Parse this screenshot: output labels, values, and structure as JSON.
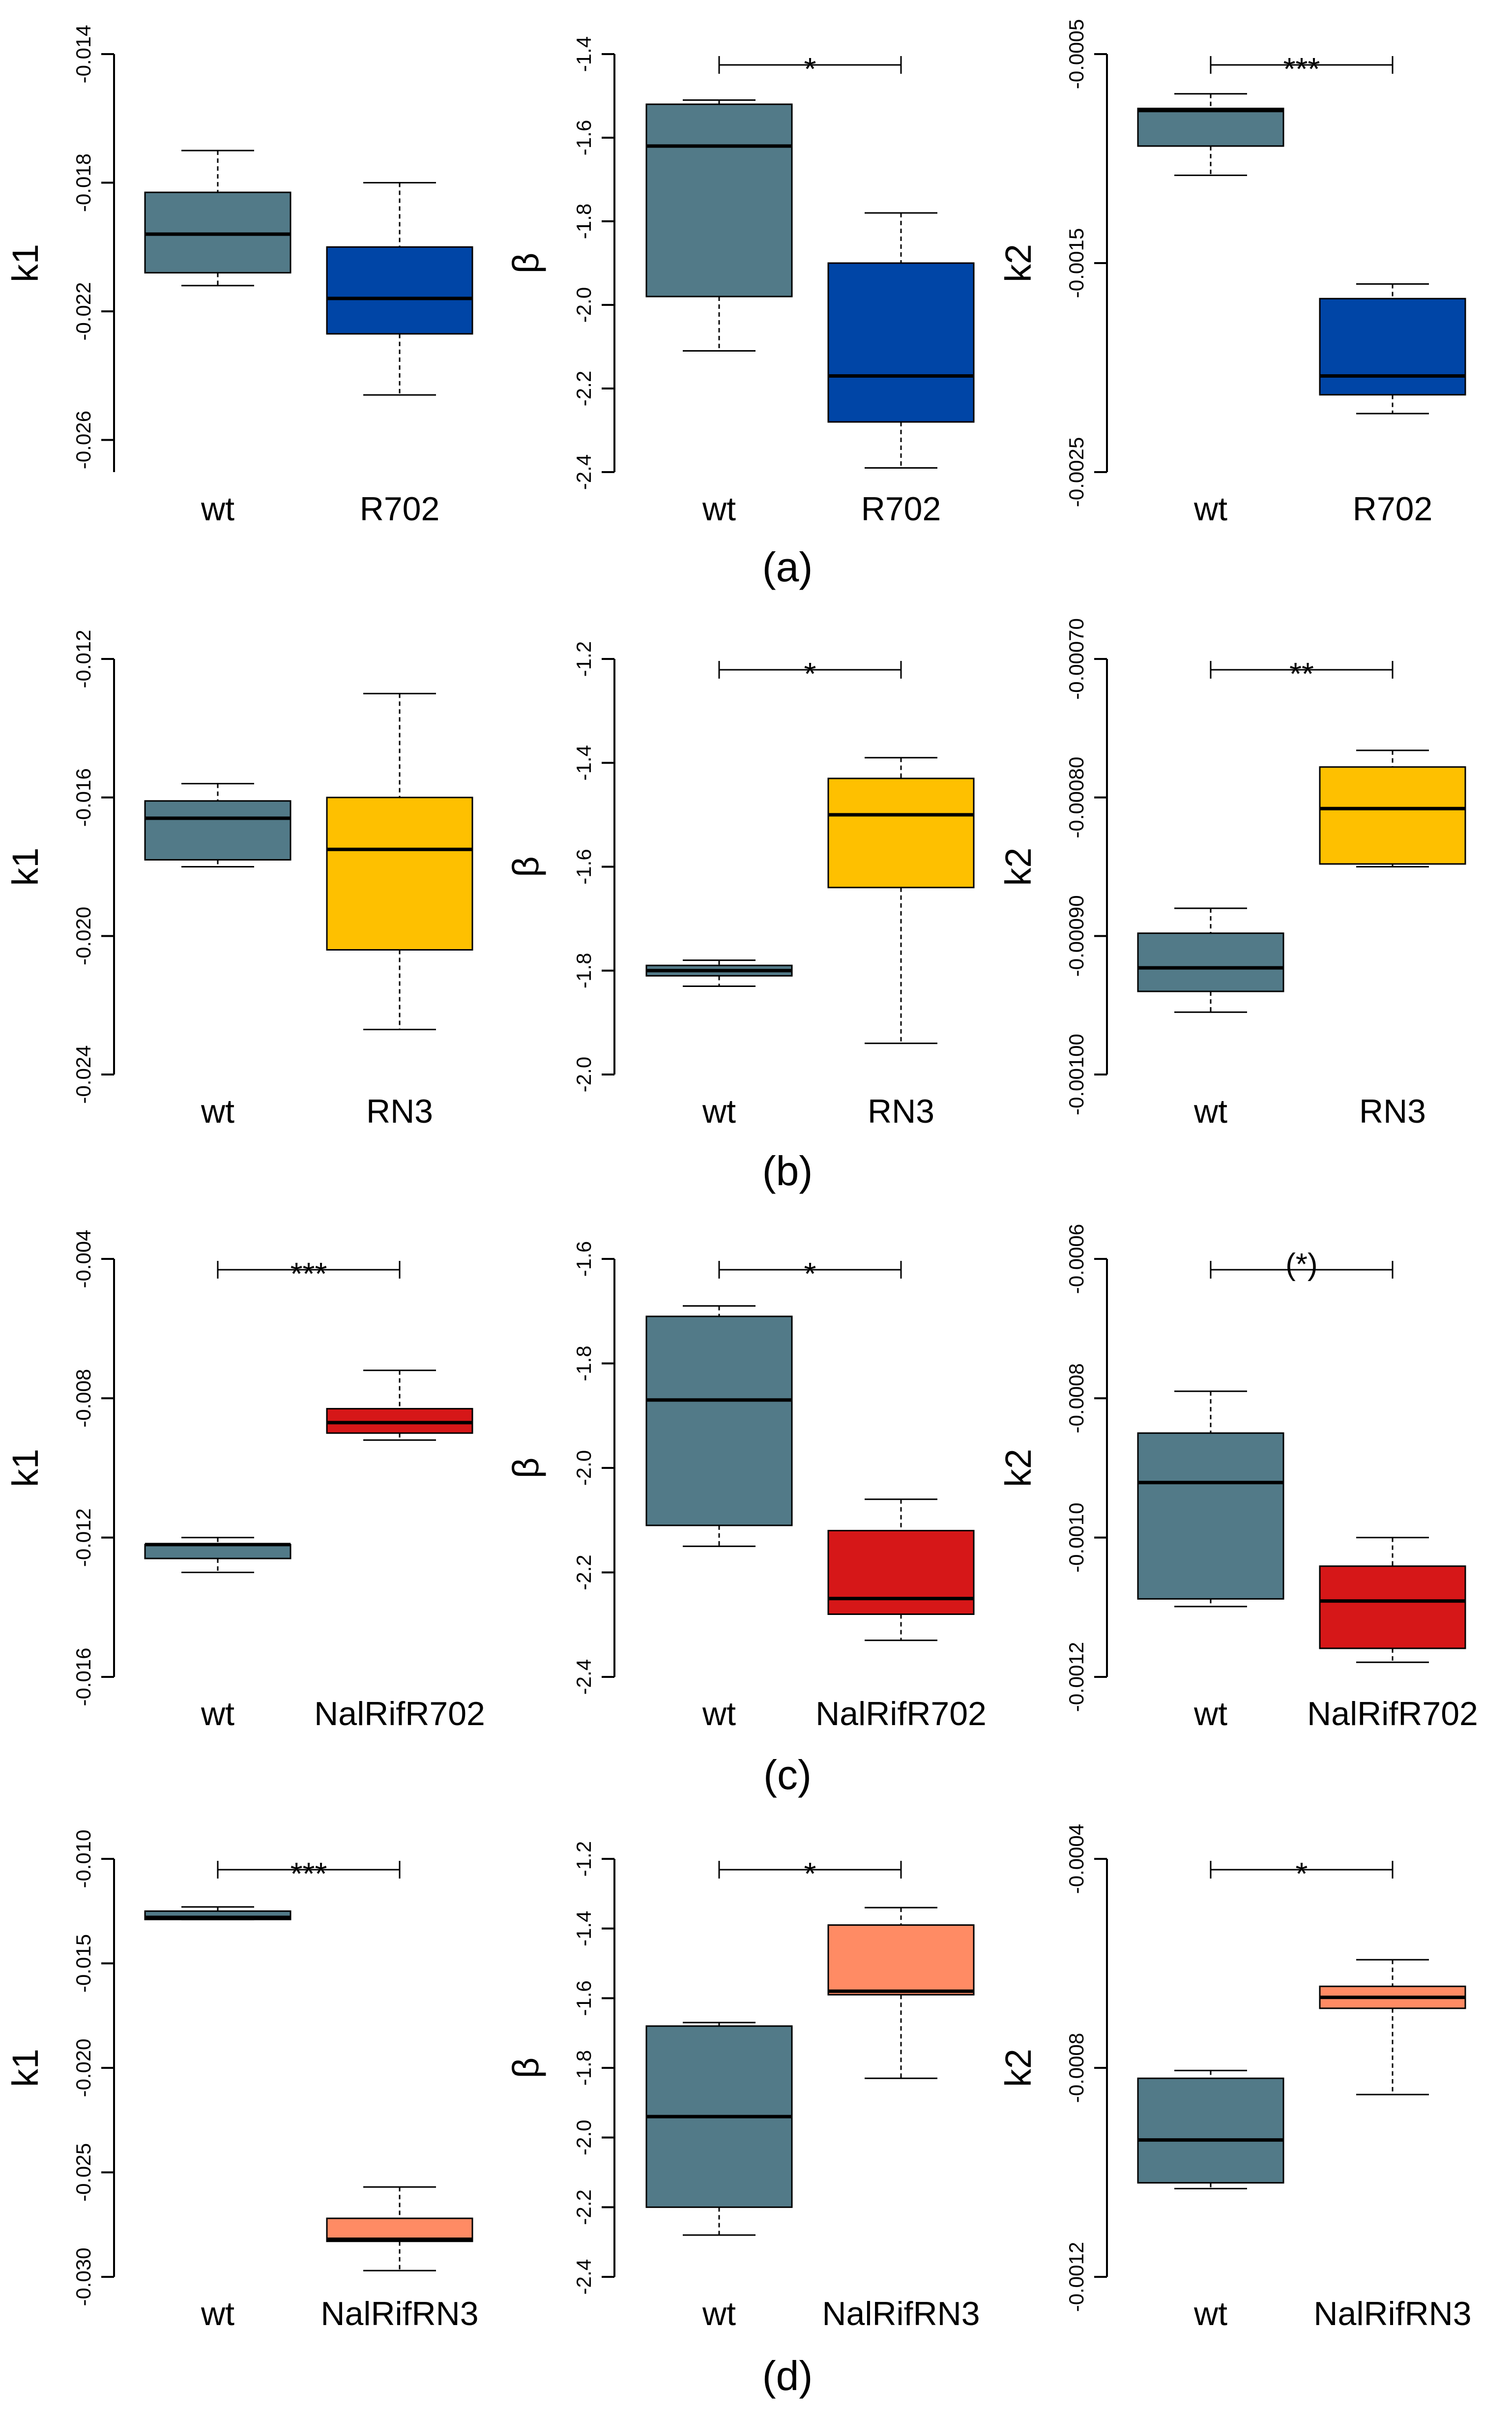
{
  "colors": {
    "wt": "#527a88",
    "R702": "#0045a6",
    "RN3": "#fec000",
    "NalRifR702": "#d61718",
    "NalRifRN3": "#ff8b64"
  },
  "chart_data": [
    {
      "panel": "(a)",
      "type": "boxplot",
      "ylabel": "k1",
      "categories": [
        "wt",
        "R702"
      ],
      "ylim": [
        -0.027,
        -0.014
      ],
      "yticks": [
        -0.014,
        -0.018,
        -0.022,
        -0.026
      ],
      "ytick_labels": [
        "-0.014",
        "-0.018",
        "-0.022",
        "-0.026"
      ],
      "boxes": [
        {
          "name": "wt",
          "color_key": "wt",
          "min": -0.0212,
          "q1": -0.0208,
          "median": -0.0196,
          "q3": -0.0183,
          "max": -0.017
        },
        {
          "name": "R702",
          "color_key": "R702",
          "min": -0.0246,
          "q1": -0.0227,
          "median": -0.0216,
          "q3": -0.02,
          "max": -0.018
        }
      ],
      "significance": ""
    },
    {
      "panel": "(a)",
      "type": "boxplot",
      "ylabel": "β",
      "categories": [
        "wt",
        "R702"
      ],
      "ylim": [
        -2.4,
        -1.4
      ],
      "yticks": [
        -1.4,
        -1.6,
        -1.8,
        -2.0,
        -2.2,
        -2.4
      ],
      "ytick_labels": [
        "-1.4",
        "-1.6",
        "-1.8",
        "-2.0",
        "-2.2",
        "-2.4"
      ],
      "boxes": [
        {
          "name": "wt",
          "color_key": "wt",
          "min": -2.11,
          "q1": -1.98,
          "median": -1.62,
          "q3": -1.52,
          "max": -1.51
        },
        {
          "name": "R702",
          "color_key": "R702",
          "min": -2.39,
          "q1": -2.28,
          "median": -2.17,
          "q3": -1.9,
          "max": -1.78
        }
      ],
      "significance": "*"
    },
    {
      "panel": "(a)",
      "type": "boxplot",
      "ylabel": "k2",
      "categories": [
        "wt",
        "R702"
      ],
      "ylim": [
        -0.0025,
        -0.0005
      ],
      "yticks": [
        -0.0005,
        -0.0015,
        -0.0025
      ],
      "ytick_labels": [
        "-0.0005",
        "-0.0015",
        "-0.0025"
      ],
      "boxes": [
        {
          "name": "wt",
          "color_key": "wt",
          "min": -0.00108,
          "q1": -0.00094,
          "median": -0.00077,
          "q3": -0.00076,
          "max": -0.00069
        },
        {
          "name": "R702",
          "color_key": "R702",
          "min": -0.00222,
          "q1": -0.00213,
          "median": -0.00204,
          "q3": -0.00167,
          "max": -0.0016
        }
      ],
      "significance": "***"
    },
    {
      "panel": "(b)",
      "type": "boxplot",
      "ylabel": "k1",
      "categories": [
        "wt",
        "RN3"
      ],
      "ylim": [
        -0.024,
        -0.012
      ],
      "yticks": [
        -0.012,
        -0.016,
        -0.02,
        -0.024
      ],
      "ytick_labels": [
        "-0.012",
        "-0.016",
        "-0.020",
        "-0.024"
      ],
      "boxes": [
        {
          "name": "wt",
          "color_key": "wt",
          "min": -0.018,
          "q1": -0.0178,
          "median": -0.0166,
          "q3": -0.0161,
          "max": -0.0156
        },
        {
          "name": "RN3",
          "color_key": "RN3",
          "min": -0.0227,
          "q1": -0.0204,
          "median": -0.0175,
          "q3": -0.016,
          "max": -0.013
        }
      ],
      "significance": ""
    },
    {
      "panel": "(b)",
      "type": "boxplot",
      "ylabel": "β",
      "categories": [
        "wt",
        "RN3"
      ],
      "ylim": [
        -2.0,
        -1.2
      ],
      "yticks": [
        -1.2,
        -1.4,
        -1.6,
        -1.8,
        -2.0
      ],
      "ytick_labels": [
        "-1.2",
        "-1.4",
        "-1.6",
        "-1.8",
        "-2.0"
      ],
      "boxes": [
        {
          "name": "wt",
          "color_key": "wt",
          "min": -1.83,
          "q1": -1.81,
          "median": -1.8,
          "q3": -1.79,
          "max": -1.78
        },
        {
          "name": "RN3",
          "color_key": "RN3",
          "min": -1.94,
          "q1": -1.64,
          "median": -1.5,
          "q3": -1.43,
          "max": -1.39
        }
      ],
      "significance": "*"
    },
    {
      "panel": "(b)",
      "type": "boxplot",
      "ylabel": "k2",
      "categories": [
        "wt",
        "RN3"
      ],
      "ylim": [
        -0.001,
        -0.0007
      ],
      "yticks": [
        -0.0007,
        -0.0008,
        -0.0009,
        -0.001
      ],
      "ytick_labels": [
        "-0.00070",
        "-0.00080",
        "-0.00090",
        "-0.00100"
      ],
      "boxes": [
        {
          "name": "wt",
          "color_key": "wt",
          "min": -0.000955,
          "q1": -0.00094,
          "median": -0.000923,
          "q3": -0.000898,
          "max": -0.00088
        },
        {
          "name": "RN3",
          "color_key": "RN3",
          "min": -0.00085,
          "q1": -0.000848,
          "median": -0.000808,
          "q3": -0.000778,
          "max": -0.000766
        }
      ],
      "significance": "**"
    },
    {
      "panel": "(c)",
      "type": "boxplot",
      "ylabel": "k1",
      "categories": [
        "wt",
        "NalRifR702"
      ],
      "ylim": [
        -0.016,
        -0.004
      ],
      "yticks": [
        -0.004,
        -0.008,
        -0.012,
        -0.016
      ],
      "ytick_labels": [
        "-0.004",
        "-0.008",
        "-0.012",
        "-0.016"
      ],
      "boxes": [
        {
          "name": "wt",
          "color_key": "wt",
          "min": -0.013,
          "q1": -0.0126,
          "median": -0.0122,
          "q3": -0.0122,
          "max": -0.012
        },
        {
          "name": "NalRifR702",
          "color_key": "NalRifR702",
          "min": -0.0092,
          "q1": -0.009,
          "median": -0.0087,
          "q3": -0.0083,
          "max": -0.0072
        }
      ],
      "significance": "***"
    },
    {
      "panel": "(c)",
      "type": "boxplot",
      "ylabel": "β",
      "categories": [
        "wt",
        "NalRifR702"
      ],
      "ylim": [
        -2.4,
        -1.6
      ],
      "yticks": [
        -1.6,
        -1.8,
        -2.0,
        -2.2,
        -2.4
      ],
      "ytick_labels": [
        "-1.6",
        "-1.8",
        "-2.0",
        "-2.2",
        "-2.4"
      ],
      "boxes": [
        {
          "name": "wt",
          "color_key": "wt",
          "min": -2.15,
          "q1": -2.11,
          "median": -1.87,
          "q3": -1.71,
          "max": -1.69
        },
        {
          "name": "NalRifR702",
          "color_key": "NalRifR702",
          "min": -2.33,
          "q1": -2.28,
          "median": -2.25,
          "q3": -2.12,
          "max": -2.06
        }
      ],
      "significance": "*"
    },
    {
      "panel": "(c)",
      "type": "boxplot",
      "ylabel": "k2",
      "categories": [
        "wt",
        "NalRifR702"
      ],
      "ylim": [
        -0.0012,
        -0.0006
      ],
      "yticks": [
        -0.0006,
        -0.0008,
        -0.001,
        -0.0012
      ],
      "ytick_labels": [
        "-0.0006",
        "-0.0008",
        "-0.0010",
        "-0.0012"
      ],
      "boxes": [
        {
          "name": "wt",
          "color_key": "wt",
          "min": -0.001099,
          "q1": -0.001088,
          "median": -0.000921,
          "q3": -0.00085,
          "max": -0.00079
        },
        {
          "name": "NalRifR702",
          "color_key": "NalRifR702",
          "min": -0.001179,
          "q1": -0.001159,
          "median": -0.001091,
          "q3": -0.001041,
          "max": -0.001
        }
      ],
      "significance": "(*)"
    },
    {
      "panel": "(d)",
      "type": "boxplot",
      "ylabel": "k1",
      "categories": [
        "wt",
        "NalRifRN3"
      ],
      "ylim": [
        -0.03,
        -0.01
      ],
      "yticks": [
        -0.01,
        -0.015,
        -0.02,
        -0.025,
        -0.03
      ],
      "ytick_labels": [
        "-0.010",
        "-0.015",
        "-0.020",
        "-0.025",
        "-0.030"
      ],
      "boxes": [
        {
          "name": "wt",
          "color_key": "wt",
          "min": -0.0129,
          "q1": -0.0129,
          "median": -0.0128,
          "q3": -0.0125,
          "max": -0.0123
        },
        {
          "name": "NalRifRN3",
          "color_key": "NalRifRN3",
          "min": -0.0297,
          "q1": -0.0283,
          "median": -0.0282,
          "q3": -0.0272,
          "max": -0.0257
        }
      ],
      "significance": "***"
    },
    {
      "panel": "(d)",
      "type": "boxplot",
      "ylabel": "β",
      "categories": [
        "wt",
        "NalRifRN3"
      ],
      "ylim": [
        -2.4,
        -1.2
      ],
      "yticks": [
        -1.2,
        -1.4,
        -1.6,
        -1.8,
        -2.0,
        -2.2,
        -2.4
      ],
      "ytick_labels": [
        "-1.2",
        "-1.4",
        "-1.6",
        "-1.8",
        "-2.0",
        "-2.2",
        "-2.4"
      ],
      "boxes": [
        {
          "name": "wt",
          "color_key": "wt",
          "min": -2.28,
          "q1": -2.2,
          "median": -1.94,
          "q3": -1.68,
          "max": -1.67
        },
        {
          "name": "NalRifRN3",
          "color_key": "NalRifRN3",
          "min": -1.83,
          "q1": -1.59,
          "median": -1.58,
          "q3": -1.39,
          "max": -1.34
        }
      ],
      "significance": "*"
    },
    {
      "panel": "(d)",
      "type": "boxplot",
      "ylabel": "k2",
      "categories": [
        "wt",
        "NalRifRN3"
      ],
      "ylim": [
        -0.0012,
        -0.0004
      ],
      "yticks": [
        -0.0004,
        -0.0008,
        -0.0012
      ],
      "ytick_labels": [
        "-0.0004",
        "-0.0008",
        "-0.0012"
      ],
      "boxes": [
        {
          "name": "wt",
          "color_key": "wt",
          "min": -0.001031,
          "q1": -0.00102,
          "median": -0.000938,
          "q3": -0.00082,
          "max": -0.000805
        },
        {
          "name": "NalRifRN3",
          "color_key": "NalRifRN3",
          "min": -0.000851,
          "q1": -0.000686,
          "median": -0.000665,
          "q3": -0.000644,
          "max": -0.000593
        }
      ],
      "significance": "*"
    }
  ],
  "panel_labels": [
    "(a)",
    "(b)",
    "(c)",
    "(d)"
  ]
}
